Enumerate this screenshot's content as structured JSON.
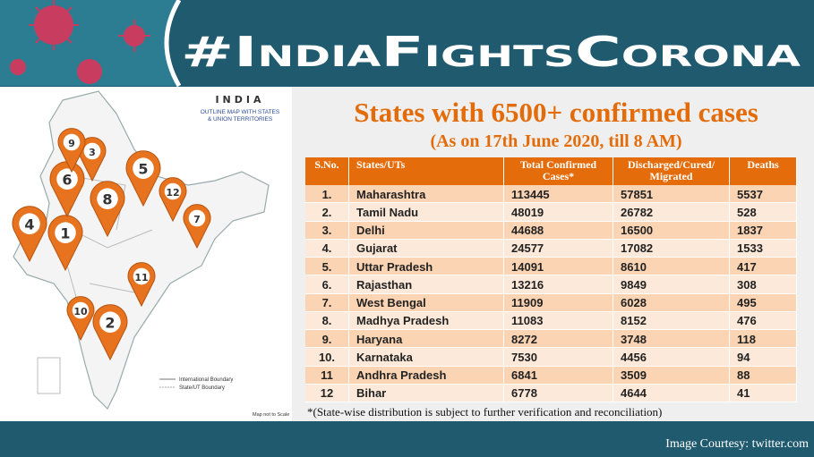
{
  "header": {
    "hashtag": "#IndiaFightsCorona"
  },
  "map": {
    "title": "INDIA",
    "subtitle_lines": [
      "OUTLINE MAP WITH STATES",
      "& UNION TERRITORIES"
    ],
    "pins": [
      "1",
      "2",
      "3",
      "4",
      "5",
      "6",
      "7",
      "8",
      "9",
      "10",
      "11",
      "12"
    ],
    "legend": [
      "International Boundary",
      "State/UT Boundary"
    ],
    "scale_note": "Map not to Scale"
  },
  "table": {
    "title": "States with 6500+ confirmed cases",
    "subtitle": "(As on 17th June 2020, till 8 AM)",
    "columns": [
      "S.No.",
      "States/UTs",
      "Total Confirmed Cases*",
      "Discharged/Cured/ Migrated",
      "Deaths"
    ],
    "rows": [
      [
        "1.",
        "Maharashtra",
        113445,
        57851,
        5537
      ],
      [
        "2.",
        "Tamil Nadu",
        48019,
        26782,
        528
      ],
      [
        "3.",
        "Delhi",
        44688,
        16500,
        1837
      ],
      [
        "4.",
        "Gujarat",
        24577,
        17082,
        1533
      ],
      [
        "5.",
        "Uttar Pradesh",
        14091,
        8610,
        417
      ],
      [
        "6.",
        "Rajasthan",
        13216,
        9849,
        308
      ],
      [
        "7.",
        "West Bengal",
        11909,
        6028,
        495
      ],
      [
        "8.",
        "Madhya Pradesh",
        11083,
        8152,
        476
      ],
      [
        "9.",
        "Haryana",
        8272,
        3748,
        118
      ],
      [
        "10.",
        "Karnataka",
        7530,
        4456,
        94
      ],
      [
        "11",
        "Andhra Pradesh",
        6841,
        3509,
        88
      ],
      [
        "12",
        "Bihar",
        6778,
        4644,
        41
      ]
    ],
    "footnote": "*(State-wise distribution is subject to further verification and reconciliation)"
  },
  "footer": {
    "credit": "Image Courtesy: twitter.com"
  }
}
